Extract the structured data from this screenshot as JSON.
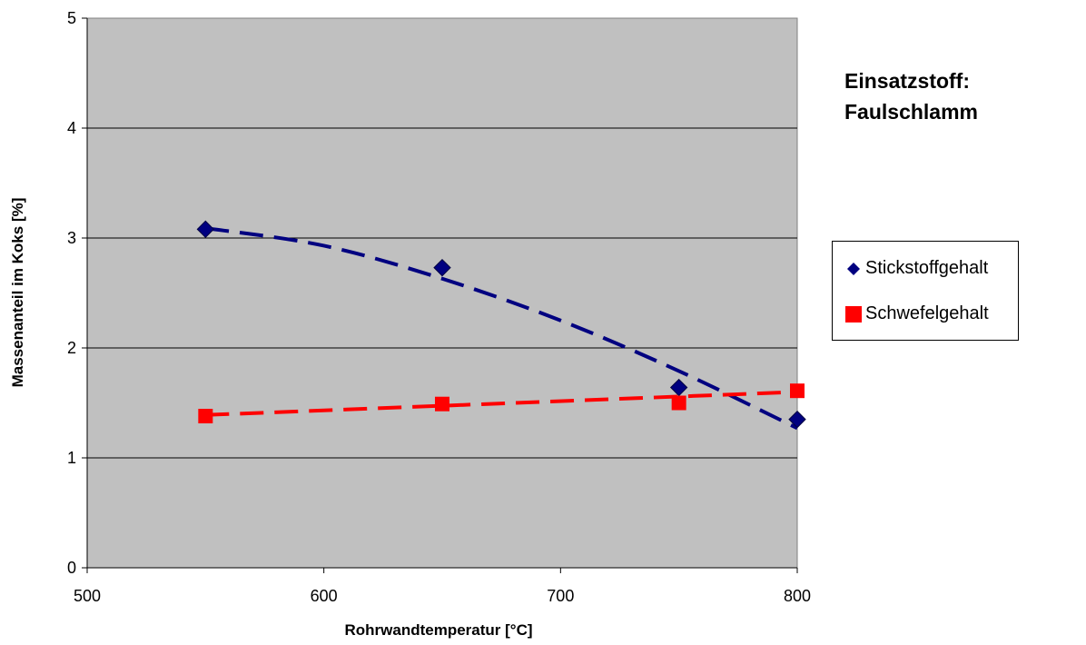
{
  "annotation": [
    "Einsatzstoff:",
    "Faulschlamm"
  ],
  "chart_data": {
    "type": "scatter",
    "xlabel": "Rohrwandtemperatur [°C]",
    "ylabel": "Massenanteil im Koks [%]",
    "xlim": [
      500,
      800
    ],
    "ylim": [
      0,
      5
    ],
    "xticks": [
      500,
      600,
      700,
      800
    ],
    "yticks": [
      0,
      1,
      2,
      3,
      4,
      5
    ],
    "grid": "horizontal",
    "plot_background": "#c0c0c0",
    "legend_position": "right",
    "series": [
      {
        "name": "Stickstoffgehalt",
        "marker": "diamond",
        "color": "#000080",
        "points": [
          [
            550,
            3.08
          ],
          [
            650,
            2.73
          ],
          [
            750,
            1.64
          ],
          [
            800,
            1.35
          ]
        ],
        "trendline": {
          "type": "polynomial",
          "style": "dashed",
          "points": [
            [
              550,
              3.09
            ],
            [
              600,
              2.93
            ],
            [
              650,
              2.63
            ],
            [
              700,
              2.25
            ],
            [
              750,
              1.79
            ],
            [
              800,
              1.27
            ]
          ]
        }
      },
      {
        "name": "Schwefelgehalt",
        "marker": "square",
        "color": "#ff0000",
        "points": [
          [
            550,
            1.38
          ],
          [
            650,
            1.49
          ],
          [
            750,
            1.5
          ],
          [
            800,
            1.61
          ]
        ],
        "trendline": {
          "type": "linear",
          "style": "dashed",
          "points": [
            [
              550,
              1.39
            ],
            [
              800,
              1.6
            ]
          ]
        }
      }
    ]
  }
}
